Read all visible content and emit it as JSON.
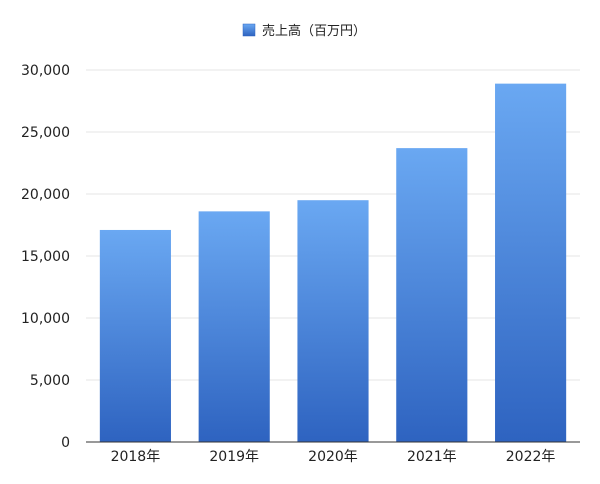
{
  "chart_data": {
    "type": "bar",
    "legend": {
      "label": "売上高（百万円）",
      "position": "top-center",
      "color": "#3f7fe0"
    },
    "categories": [
      "2018年",
      "2019年",
      "2020年",
      "2021年",
      "2022年"
    ],
    "series": [
      {
        "name": "売上高（百万円）",
        "values": [
          17100,
          18600,
          19500,
          23700,
          28900
        ]
      }
    ],
    "ylim": [
      0,
      30000
    ],
    "yticks": [
      0,
      5000,
      10000,
      15000,
      20000,
      25000,
      30000
    ],
    "ytick_labels": [
      "0",
      "5,000",
      "10,000",
      "15,000",
      "20,000",
      "25,000",
      "30,000"
    ],
    "grid": true,
    "colors": {
      "bar_top": "#6aa8f2",
      "bar_bottom": "#2e63c0",
      "grid": "#e6e6e6",
      "axis": "#333333"
    }
  }
}
